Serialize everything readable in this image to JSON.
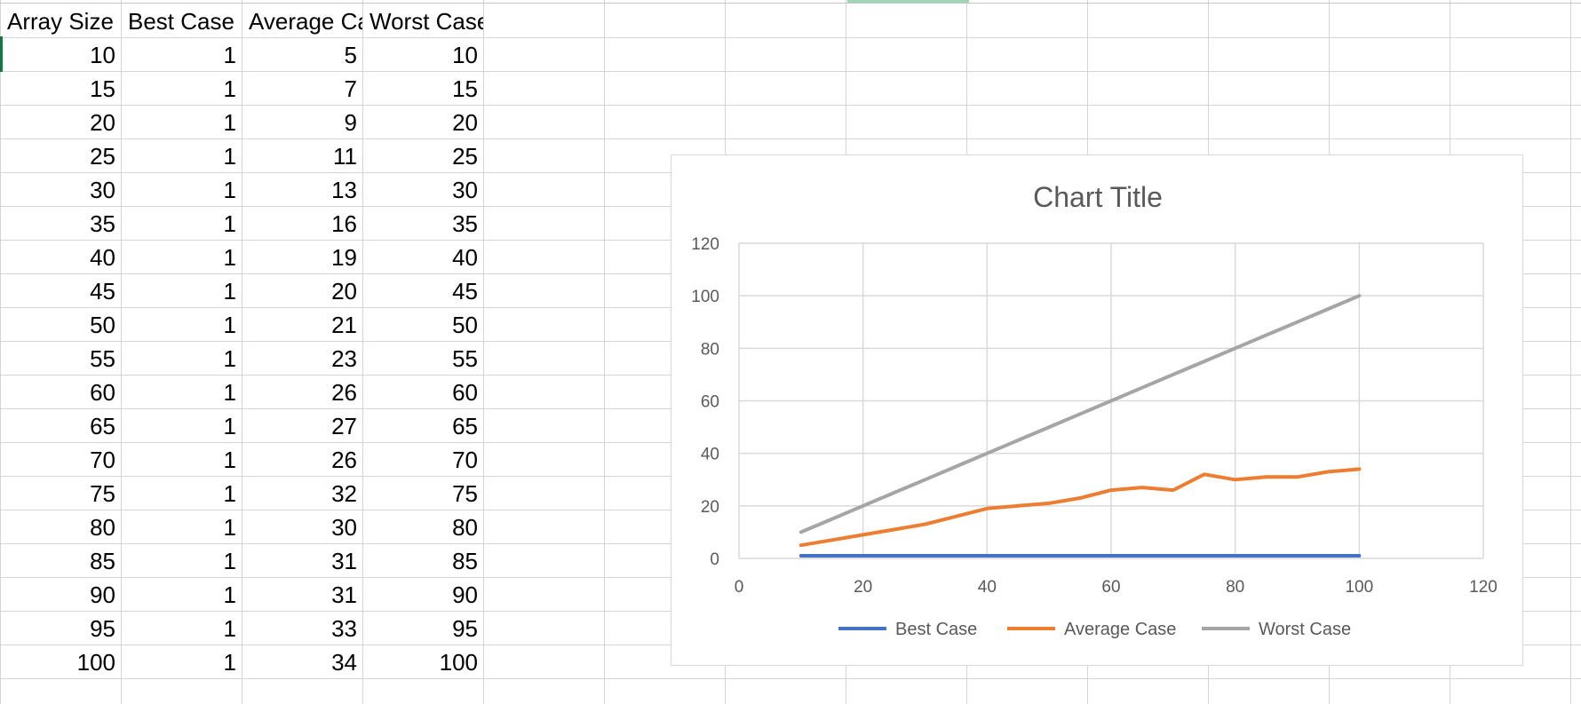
{
  "sheet": {
    "headers": [
      "Array Size",
      "Best Case",
      "Average Ca",
      "Worst Case"
    ],
    "rows": [
      [
        "10",
        "1",
        "5",
        "10"
      ],
      [
        "15",
        "1",
        "7",
        "15"
      ],
      [
        "20",
        "1",
        "9",
        "20"
      ],
      [
        "25",
        "1",
        "11",
        "25"
      ],
      [
        "30",
        "1",
        "13",
        "30"
      ],
      [
        "35",
        "1",
        "16",
        "35"
      ],
      [
        "40",
        "1",
        "19",
        "40"
      ],
      [
        "45",
        "1",
        "20",
        "45"
      ],
      [
        "50",
        "1",
        "21",
        "50"
      ],
      [
        "55",
        "1",
        "23",
        "55"
      ],
      [
        "60",
        "1",
        "26",
        "60"
      ],
      [
        "65",
        "1",
        "27",
        "65"
      ],
      [
        "70",
        "1",
        "26",
        "70"
      ],
      [
        "75",
        "1",
        "32",
        "75"
      ],
      [
        "80",
        "1",
        "30",
        "80"
      ],
      [
        "85",
        "1",
        "31",
        "85"
      ],
      [
        "90",
        "1",
        "31",
        "90"
      ],
      [
        "95",
        "1",
        "33",
        "95"
      ],
      [
        "100",
        "1",
        "34",
        "100"
      ]
    ]
  },
  "chart_data": {
    "type": "scatter",
    "title": "Chart Title",
    "x": [
      10,
      15,
      20,
      25,
      30,
      35,
      40,
      45,
      50,
      55,
      60,
      65,
      70,
      75,
      80,
      85,
      90,
      95,
      100
    ],
    "series": [
      {
        "name": "Best Case",
        "values": [
          1,
          1,
          1,
          1,
          1,
          1,
          1,
          1,
          1,
          1,
          1,
          1,
          1,
          1,
          1,
          1,
          1,
          1,
          1
        ],
        "color": "#4472c4"
      },
      {
        "name": "Average Case",
        "values": [
          5,
          7,
          9,
          11,
          13,
          16,
          19,
          20,
          21,
          23,
          26,
          27,
          26,
          32,
          30,
          31,
          31,
          33,
          34
        ],
        "color": "#ed7d31"
      },
      {
        "name": "Worst Case",
        "values": [
          10,
          15,
          20,
          25,
          30,
          35,
          40,
          45,
          50,
          55,
          60,
          65,
          70,
          75,
          80,
          85,
          90,
          95,
          100
        ],
        "color": "#a5a5a5"
      }
    ],
    "xlim": [
      0,
      120
    ],
    "ylim": [
      0,
      120
    ],
    "xticks": [
      "0",
      "20",
      "40",
      "60",
      "80",
      "100",
      "120"
    ],
    "yticks": [
      "0",
      "20",
      "40",
      "60",
      "80",
      "100",
      "120"
    ],
    "grid": true,
    "legend": "bottom"
  }
}
